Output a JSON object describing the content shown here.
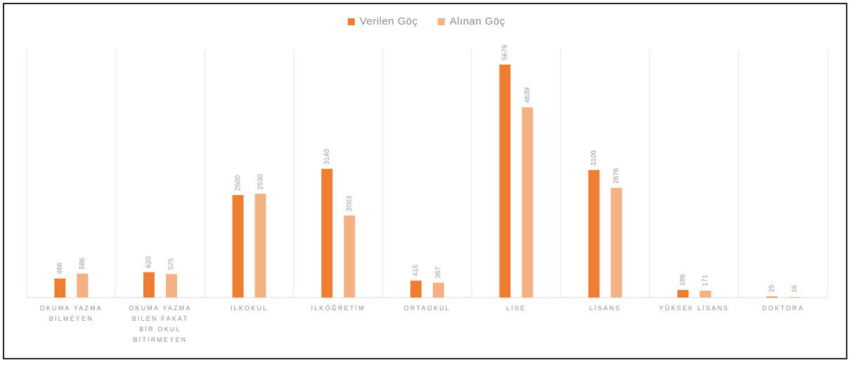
{
  "chart_data": {
    "type": "bar",
    "categories": [
      "OKUMA YAZMA BİLMEYEN",
      "OKUMA YAZMA BİLEN FAKAT BİR OKUL BİTİRMEYEN",
      "İLKOKUL",
      "İLKÖĞRETİM",
      "ORTAOKUL",
      "LİSE",
      "LİSANS",
      "YÜKSEK LİSANS",
      "DOKTORA"
    ],
    "series": [
      {
        "name": "Verilen Göç",
        "color": "#ED7D31",
        "values": [
          466,
          620,
          2500,
          3140,
          415,
          5679,
          3109,
          186,
          25
        ]
      },
      {
        "name": "Alınan Göç",
        "color": "#F4B183",
        "values": [
          586,
          575,
          2530,
          2003,
          367,
          4639,
          2676,
          171,
          16
        ]
      }
    ],
    "value_labels": [
      [
        "466",
        "620",
        "2500",
        "3140",
        "415",
        "5679",
        "3109",
        "186",
        "25"
      ],
      [
        "586",
        "575",
        "2530",
        "2003",
        "367",
        "4639",
        "2676",
        "171",
        "16"
      ]
    ],
    "ylim": [
      0,
      6000
    ],
    "grid": "vertical category separators",
    "legend_position": "top-center",
    "title": "",
    "xlabel": "",
    "ylabel": ""
  }
}
